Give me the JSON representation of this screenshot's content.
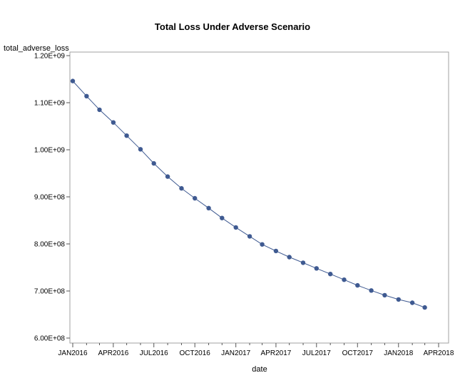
{
  "chart_data": {
    "type": "line",
    "title": "Total Loss Under Adverse Scenario",
    "xlabel": "date",
    "ylabel": "total_adverse_loss",
    "ylim": [
      600000000,
      1200000000
    ],
    "xlim": [
      "2016-01-01",
      "2018-04-01"
    ],
    "y_ticks": [
      {
        "value": 600000000,
        "label": "6.00E+08"
      },
      {
        "value": 700000000,
        "label": "7.00E+08"
      },
      {
        "value": 800000000,
        "label": "8.00E+08"
      },
      {
        "value": 900000000,
        "label": "9.00E+08"
      },
      {
        "value": 1000000000,
        "label": "1.00E+09"
      },
      {
        "value": 1100000000,
        "label": "1.10E+09"
      },
      {
        "value": 1200000000,
        "label": "1.20E+09"
      }
    ],
    "x_ticks": [
      {
        "value": "2016-01-01",
        "label": "JAN2016"
      },
      {
        "value": "2016-04-01",
        "label": "APR2016"
      },
      {
        "value": "2016-07-01",
        "label": "JUL2016"
      },
      {
        "value": "2016-10-01",
        "label": "OCT2016"
      },
      {
        "value": "2017-01-01",
        "label": "JAN2017"
      },
      {
        "value": "2017-04-01",
        "label": "APR2017"
      },
      {
        "value": "2017-07-01",
        "label": "JUL2017"
      },
      {
        "value": "2017-10-01",
        "label": "OCT2017"
      },
      {
        "value": "2018-01-01",
        "label": "JAN2018"
      },
      {
        "value": "2018-04-01",
        "label": "APR2018"
      }
    ],
    "grid": false,
    "series": [
      {
        "color": "#3f5a91",
        "points": [
          {
            "x": "2016-01-01",
            "y": 1146000000
          },
          {
            "x": "2016-02-01",
            "y": 1114000000
          },
          {
            "x": "2016-03-01",
            "y": 1085000000
          },
          {
            "x": "2016-04-01",
            "y": 1058000000
          },
          {
            "x": "2016-05-01",
            "y": 1030000000
          },
          {
            "x": "2016-06-01",
            "y": 1001000000
          },
          {
            "x": "2016-07-01",
            "y": 971000000
          },
          {
            "x": "2016-08-01",
            "y": 943000000
          },
          {
            "x": "2016-09-01",
            "y": 918000000
          },
          {
            "x": "2016-10-01",
            "y": 897000000
          },
          {
            "x": "2016-11-01",
            "y": 876000000
          },
          {
            "x": "2016-12-01",
            "y": 855000000
          },
          {
            "x": "2017-01-01",
            "y": 835000000
          },
          {
            "x": "2017-02-01",
            "y": 816000000
          },
          {
            "x": "2017-03-01",
            "y": 799000000
          },
          {
            "x": "2017-04-01",
            "y": 785000000
          },
          {
            "x": "2017-05-01",
            "y": 772000000
          },
          {
            "x": "2017-06-01",
            "y": 760000000
          },
          {
            "x": "2017-07-01",
            "y": 748000000
          },
          {
            "x": "2017-08-01",
            "y": 736000000
          },
          {
            "x": "2017-09-01",
            "y": 724000000
          },
          {
            "x": "2017-10-01",
            "y": 712000000
          },
          {
            "x": "2017-11-01",
            "y": 701000000
          },
          {
            "x": "2017-12-01",
            "y": 691000000
          },
          {
            "x": "2018-01-01",
            "y": 682000000
          },
          {
            "x": "2018-02-01",
            "y": 675000000
          },
          {
            "x": "2018-03-01",
            "y": 665000000
          }
        ]
      }
    ]
  }
}
